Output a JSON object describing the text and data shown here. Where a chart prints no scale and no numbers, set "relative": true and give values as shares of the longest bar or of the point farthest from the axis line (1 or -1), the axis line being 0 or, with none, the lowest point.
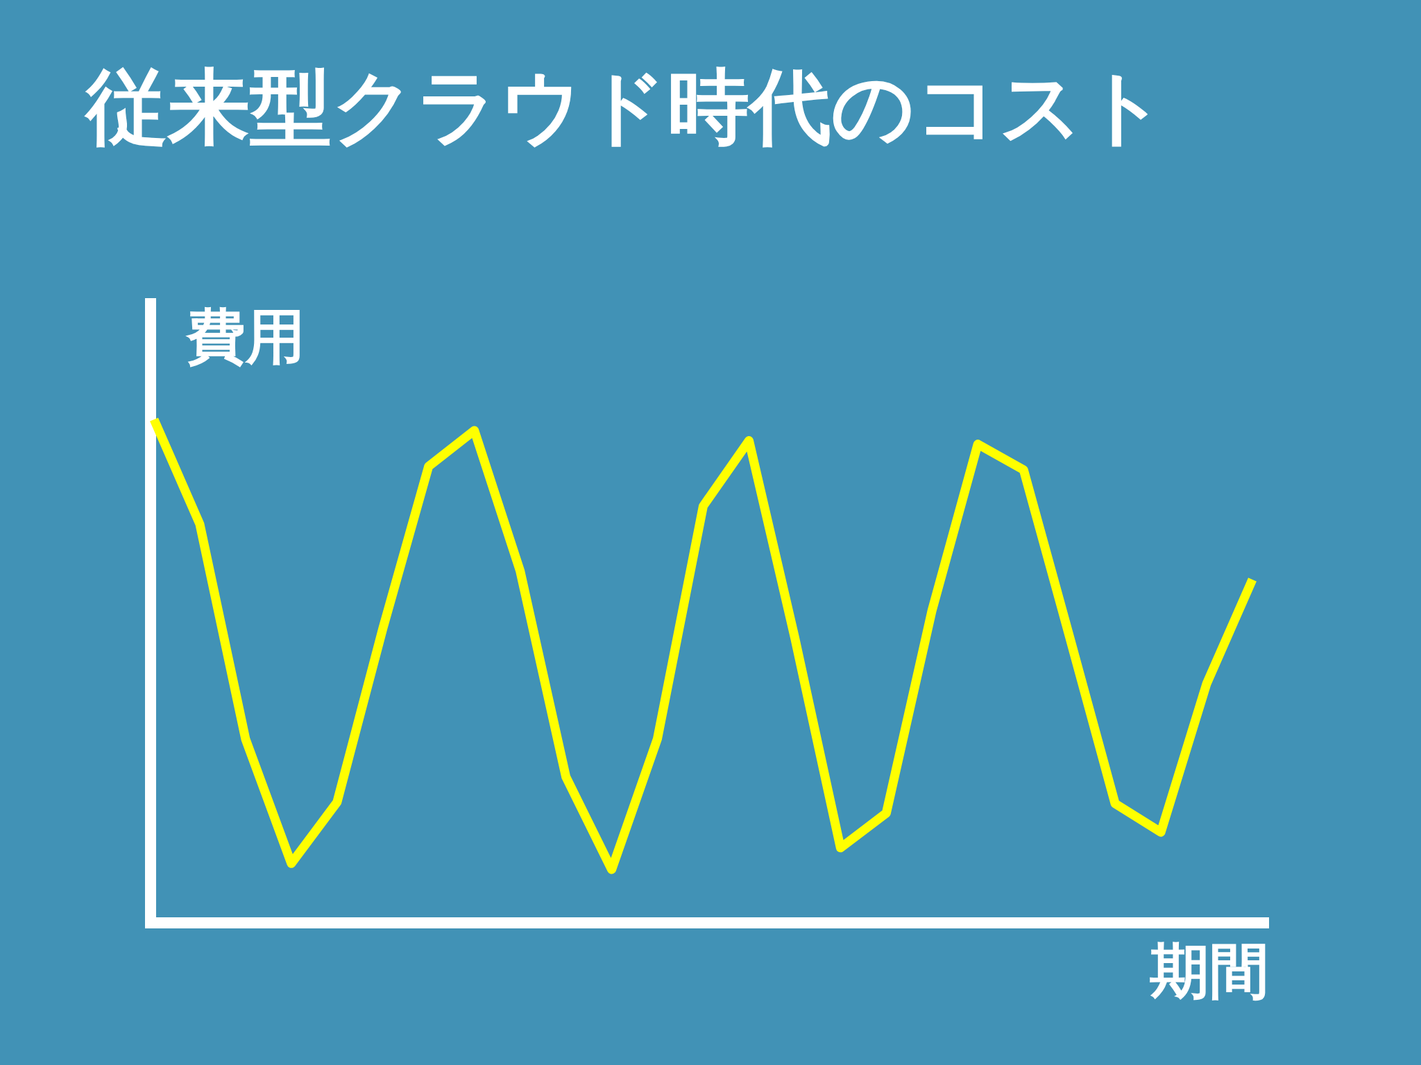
{
  "chart_data": {
    "type": "line",
    "title": "従来型クラウド時代のコスト",
    "ylabel": "費用",
    "xlabel": "期間",
    "relative": true,
    "categories": [
      null,
      null,
      null,
      null,
      null,
      null,
      null,
      null,
      null,
      null,
      null,
      null,
      null,
      null,
      null,
      null,
      null,
      null,
      null,
      null,
      null,
      null,
      null,
      null,
      null
    ],
    "series": [
      {
        "color": "#ffff00",
        "values": [
          1,
          0.792,
          0.365,
          0.118,
          0.24,
          0.585,
          0.907,
          0.978,
          0.699,
          0.29,
          0.106,
          0.366,
          0.828,
          0.958,
          0.567,
          0.149,
          0.218,
          0.621,
          0.951,
          0.9,
          0.57,
          0.237,
          0.18,
          0.475,
          0.682
        ]
      }
    ],
    "marker": "none",
    "line_style": "solid"
  }
}
